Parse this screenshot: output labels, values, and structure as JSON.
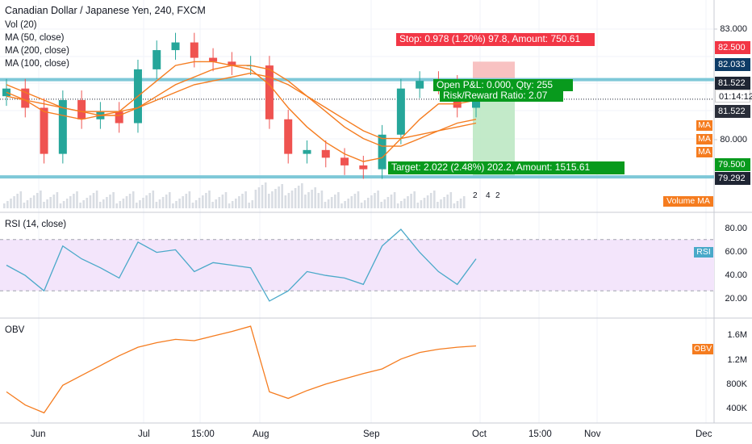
{
  "header": {
    "title": "Canadian Dollar / Japanese Yen, 240, FXCM"
  },
  "legend": [
    "Vol (20)",
    "MA (50, close)",
    "MA (200, close)",
    "MA (100, close)"
  ],
  "colors": {
    "up": "#26a69a",
    "down": "#ef5350",
    "ma": "#f57c1f",
    "hline": "#7ec8d8",
    "rsi": "#4aa9c9",
    "obv": "#f57c1f",
    "stop_bg": "#f7b7b7",
    "target_bg": "#b9e6bf",
    "label_red": "#f23645",
    "label_green": "#089a1d",
    "rsi_band": "#f3e5fb"
  },
  "main_pane": {
    "price_axis": [
      "83.000",
      "80.000"
    ],
    "tags": {
      "stop": "82.500",
      "resistance": "82.033",
      "last": "81.522",
      "timer": "01:14:12",
      "current": "81.522",
      "target": "79.500",
      "low": "79.292"
    },
    "ma_badges": [
      "MA",
      "MA",
      "MA"
    ],
    "position": {
      "stop_label": "Stop: 0.978 (1.20%) 97.8, Amount: 750.61",
      "open_label": "Open P&L: 0.000, Qty: 255",
      "rr_label": "Risk/Reward Ratio: 2.07",
      "target_label": "Target: 2.022 (2.48%) 202.2, Amount: 1515.61"
    },
    "volume_ma_label": "Volume MA",
    "event_marks": [
      "2",
      "4",
      "2"
    ]
  },
  "rsi_pane": {
    "title": "RSI (14, close)",
    "axis": [
      "80.00",
      "60.00",
      "40.00",
      "20.00"
    ],
    "tag": "RSI"
  },
  "obv_pane": {
    "title": "OBV",
    "axis": [
      "1.6M",
      "1.2M",
      "800K",
      "400K"
    ],
    "tag": "OBV"
  },
  "time_axis": [
    "Jun",
    "Jul",
    "15:00",
    "Aug",
    "Sep",
    "Oct",
    "15:00",
    "Nov",
    "Dec"
  ],
  "chart_data": {
    "type": "candlestick",
    "symbol": "CADJPY",
    "interval": "240",
    "ylim": [
      78.6,
      83.6
    ],
    "x": [
      "May 28",
      "Jun 2",
      "Jun 7",
      "Jun 12",
      "Jun 17",
      "Jun 22",
      "Jun 27",
      "Jul 2",
      "Jul 7",
      "Jul 12",
      "Jul 17",
      "Jul 22",
      "Jul 27",
      "Aug 1",
      "Aug 6",
      "Aug 11",
      "Aug 16",
      "Aug 21",
      "Aug 26",
      "Aug 31",
      "Sep 5",
      "Sep 10",
      "Sep 15",
      "Sep 20",
      "Sep 25",
      "Sep 28"
    ],
    "close": [
      81.8,
      81.3,
      80.1,
      81.5,
      81.0,
      81.2,
      80.9,
      82.3,
      82.8,
      83.0,
      82.6,
      82.5,
      82.4,
      82.4,
      81.0,
      80.1,
      80.2,
      80.0,
      79.8,
      79.7,
      80.6,
      81.8,
      82.0,
      81.9,
      81.3,
      81.5
    ],
    "ma50": [
      81.7,
      81.5,
      81.2,
      81.1,
      81.0,
      81.1,
      81.2,
      81.6,
      82.0,
      82.4,
      82.5,
      82.5,
      82.4,
      82.3,
      81.9,
      81.3,
      80.8,
      80.4,
      80.1,
      79.9,
      80.0,
      80.5,
      81.0,
      81.4,
      81.4,
      81.5
    ],
    "ma100": [
      81.9,
      81.7,
      81.5,
      81.3,
      81.2,
      81.1,
      81.1,
      81.3,
      81.6,
      81.9,
      82.1,
      82.3,
      82.4,
      82.4,
      82.3,
      82.0,
      81.6,
      81.2,
      80.8,
      80.5,
      80.3,
      80.3,
      80.5,
      80.7,
      80.9,
      81.0
    ],
    "ma200": [
      81.6,
      81.5,
      81.4,
      81.3,
      81.2,
      81.2,
      81.2,
      81.3,
      81.5,
      81.7,
      81.9,
      82.0,
      82.1,
      82.2,
      82.1,
      81.9,
      81.6,
      81.3,
      81.0,
      80.7,
      80.5,
      80.5,
      80.6,
      80.7,
      80.8,
      80.9
    ],
    "rsi": [
      50,
      42,
      30,
      65,
      55,
      48,
      40,
      68,
      60,
      62,
      45,
      52,
      50,
      48,
      22,
      30,
      45,
      42,
      40,
      35,
      65,
      78,
      60,
      45,
      35,
      55
    ],
    "obv_k": [
      700,
      500,
      380,
      800,
      950,
      1100,
      1250,
      1380,
      1450,
      1500,
      1480,
      1550,
      1620,
      1700,
      700,
      600,
      720,
      820,
      900,
      980,
      1050,
      1200,
      1300,
      1350,
      1380,
      1400
    ],
    "levels": {
      "resistance": 82.033,
      "support": 79.5
    },
    "position": {
      "entry": 81.522,
      "stop": 82.5,
      "target": 79.5
    },
    "rsi_band": [
      30,
      70
    ],
    "rsi_ylim": [
      10,
      90
    ],
    "obv_ylim_k": [
      250,
      1800
    ]
  }
}
